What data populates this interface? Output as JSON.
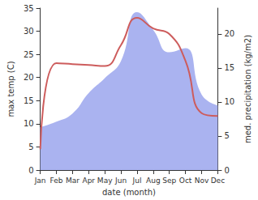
{
  "chart_data": {
    "type": "line",
    "categories": [
      "Jan",
      "Feb",
      "Mar",
      "Apr",
      "May",
      "Jun",
      "Jul",
      "Aug",
      "Sep",
      "Oct",
      "Nov",
      "Dec"
    ],
    "xlabel": "date (month)",
    "ylabel": "max temp (C)",
    "y2label": "med. precipitation (kg/m2)",
    "ylim": [
      0,
      35
    ],
    "yticks": [
      0,
      5,
      10,
      15,
      20,
      25,
      30,
      35
    ],
    "y2lim": [
      0,
      23.8
    ],
    "y2ticks": [
      0,
      5,
      10,
      15,
      20
    ],
    "grid": false,
    "series": [
      {
        "name": "med. precipitation",
        "type": "area",
        "axis": "y2",
        "color": "#aab3f0",
        "values": [
          6.3,
          7.1,
          8.3,
          11.3,
          13.5,
          16,
          23.2,
          20.6,
          17.3,
          17.9,
          11.1,
          9.5
        ]
      },
      {
        "name": "max temp",
        "type": "line",
        "axis": "y",
        "color": "#cd5c5c",
        "values": [
          4.5,
          23.1,
          22.9,
          22.7,
          22.5,
          27,
          32.9,
          30.6,
          29.4,
          23.6,
          12.3,
          11.7
        ]
      }
    ]
  }
}
